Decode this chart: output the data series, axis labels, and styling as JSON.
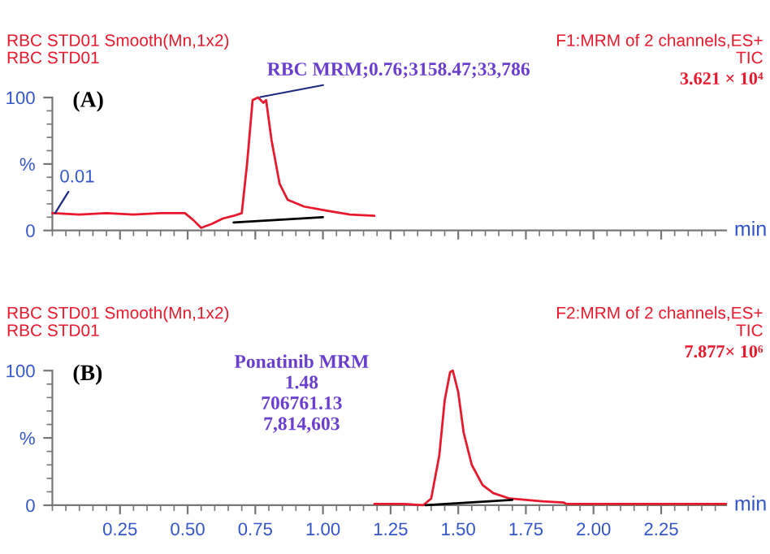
{
  "chart_data": [
    {
      "type": "line",
      "title": "RBC STD01 Smooth(Mn,1x2)",
      "subtitle": "RBC STD01",
      "xlabel": "min",
      "xlim": [
        0,
        2.49
      ],
      "xticks": [
        0.25,
        0.5,
        0.75,
        1.0,
        1.25,
        1.5,
        1.75,
        2.0,
        2.25
      ],
      "ylim": [
        0,
        100
      ],
      "yticks": [
        0,
        {
          "value": 50,
          "label": "%"
        },
        100
      ],
      "tick_labels": "y",
      "grid": false,
      "legend": false,
      "annotations": [
        "F1:MRM of 2 channels,ES+",
        "TIC",
        "3.621 × 10⁴",
        "(A)",
        {
          "text": "RBC MRM;0.76;3158.47;33,786",
          "x": 0.76,
          "y": 100
        },
        {
          "text": "0.01",
          "x": 0.01,
          "y": 13
        }
      ],
      "series": [
        {
          "color": "#e8192c",
          "x": [
            0.0,
            0.1,
            0.2,
            0.3,
            0.4,
            0.49,
            0.52,
            0.55,
            0.59,
            0.63,
            0.67,
            0.7,
            0.72,
            0.74,
            0.76,
            0.78,
            0.79,
            0.81,
            0.84,
            0.87,
            0.93,
            1.01,
            1.1,
            1.19
          ],
          "values": [
            13,
            12,
            13,
            12,
            13,
            13,
            8,
            2,
            5,
            9,
            11,
            13,
            51,
            98,
            100,
            96,
            98,
            68,
            35,
            23,
            18,
            15,
            12,
            11
          ]
        },
        {
          "color": "#000000",
          "x": [
            0.67,
            1.0
          ],
          "values": [
            6,
            10
          ]
        }
      ]
    },
    {
      "type": "line",
      "title": "RBC STD01 Smooth(Mn,1x2)",
      "subtitle": "RBC STD01",
      "xlabel": "min",
      "xlim": [
        0,
        2.49
      ],
      "xticks": [
        0.25,
        {
          "value": 0.5,
          "label": "0.50"
        },
        0.75,
        {
          "value": 1.0,
          "label": "1.00"
        },
        1.25,
        {
          "value": 1.5,
          "label": "1.50"
        },
        1.75,
        {
          "value": 2.0,
          "label": "2.00"
        },
        2.25
      ],
      "ylim": [
        0,
        100
      ],
      "yticks": [
        0,
        {
          "value": 50,
          "label": "%"
        },
        100
      ],
      "grid": false,
      "legend": false,
      "annotations": [
        "F2:MRM of 2 channels,ES+",
        "TIC",
        "7.877× 10⁶",
        "(B)",
        "Ponatinib MRM\n1.48\n706761.13\n7,814,603"
      ],
      "series": [
        {
          "color": "#e8192c",
          "x": [
            1.19,
            1.3,
            1.37,
            1.4,
            1.43,
            1.45,
            1.47,
            1.48,
            1.5,
            1.52,
            1.55,
            1.59,
            1.63,
            1.69,
            1.81,
            1.89,
            1.9,
            2.1,
            2.3,
            2.49
          ],
          "values": [
            1,
            1,
            0,
            5,
            37,
            78,
            99,
            100,
            84,
            54,
            30,
            15,
            9,
            5,
            3,
            2,
            1,
            1,
            1,
            1
          ]
        },
        {
          "color": "#000000",
          "x": [
            1.38,
            1.7
          ],
          "values": [
            0,
            4
          ]
        }
      ]
    }
  ]
}
